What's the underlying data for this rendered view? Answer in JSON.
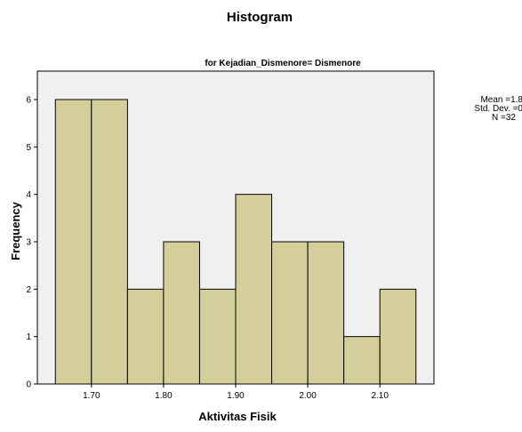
{
  "chart_data": {
    "type": "bar",
    "title": "Histogram",
    "subtitle": "for Kejadian_Dismenore= Dismenore",
    "xlabel": "Aktivitas Fisik",
    "ylabel": "Frequency",
    "bins": [
      {
        "start": 1.65,
        "end": 1.7,
        "count": 6
      },
      {
        "start": 1.7,
        "end": 1.75,
        "count": 6
      },
      {
        "start": 1.75,
        "end": 1.8,
        "count": 2
      },
      {
        "start": 1.8,
        "end": 1.85,
        "count": 3
      },
      {
        "start": 1.85,
        "end": 1.9,
        "count": 2
      },
      {
        "start": 1.9,
        "end": 1.95,
        "count": 4
      },
      {
        "start": 1.95,
        "end": 2.0,
        "count": 3
      },
      {
        "start": 2.0,
        "end": 2.05,
        "count": 3
      },
      {
        "start": 2.05,
        "end": 2.1,
        "count": 1
      },
      {
        "start": 2.1,
        "end": 2.15,
        "count": 2
      }
    ],
    "xlim": [
      1.625,
      2.175
    ],
    "ylim": [
      0,
      6.6
    ],
    "xticks": [
      {
        "value": 1.7,
        "label": "1.70"
      },
      {
        "value": 1.8,
        "label": "1.80"
      },
      {
        "value": 1.9,
        "label": "1.90"
      },
      {
        "value": 2.0,
        "label": "2.00"
      },
      {
        "value": 2.1,
        "label": "2.10"
      }
    ],
    "yticks": [
      0,
      1,
      2,
      3,
      4,
      5,
      6
    ],
    "colors": {
      "bar_fill": "#d4cf9a",
      "bar_stroke": "#000000",
      "plot_background": "#f0f0f0"
    },
    "stats": {
      "mean": "Mean =1.8",
      "std_dev": "Std. Dev. =0",
      "n": "N =32"
    }
  }
}
